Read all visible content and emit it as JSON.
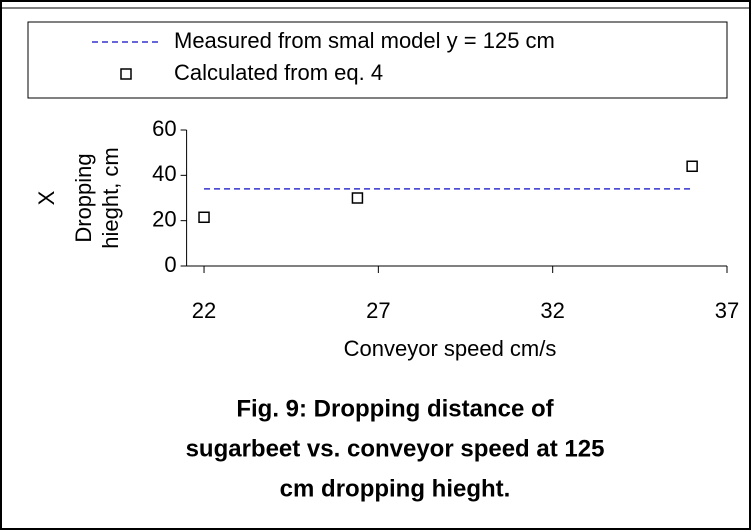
{
  "chart_data": {
    "type": "scatter",
    "legend_position": "top",
    "xlabel": "Conveyor speed cm/s",
    "ylabel_lines": [
      "X",
      "Dropping",
      "hieght, cm"
    ],
    "caption_lines": [
      "Fig. 9: Dropping distance of",
      "sugarbeet vs.  conveyor speed at 125",
      "cm dropping hieght."
    ],
    "xlim": [
      21.5,
      37
    ],
    "xticks": [
      22,
      27,
      32,
      37
    ],
    "ylim": [
      0,
      60
    ],
    "yticks": [
      0,
      20,
      40,
      60
    ],
    "series": [
      {
        "name": "Measured from smal model y  = 125 cm",
        "color": "#3333cc",
        "style": "dashed",
        "x": [
          22,
          36
        ],
        "values": [
          34,
          34
        ]
      },
      {
        "name": "Calculated from eq. 4",
        "color": "#000000",
        "style": "square",
        "x": [
          22,
          26.4,
          36
        ],
        "values": [
          21.5,
          30,
          44
        ]
      }
    ]
  }
}
